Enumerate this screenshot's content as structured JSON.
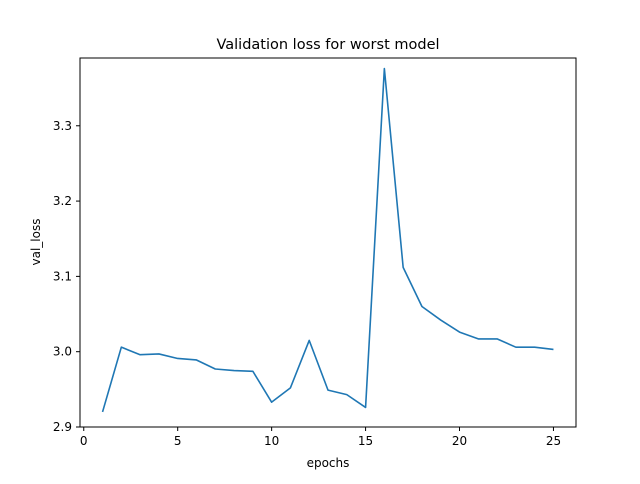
{
  "chart_data": {
    "type": "line",
    "title": "Validation loss for worst model",
    "xlabel": "epochs",
    "ylabel": "val_loss",
    "xlim": [
      -0.2,
      26.2
    ],
    "ylim": [
      2.9,
      3.39
    ],
    "xticks": [
      0,
      5,
      10,
      15,
      20,
      25
    ],
    "yticks": [
      2.9,
      3.0,
      3.1,
      3.2,
      3.3
    ],
    "ytick_labels": [
      "2.9",
      "3.0",
      "3.1",
      "3.2",
      "3.3"
    ],
    "xtick_labels": [
      "0",
      "5",
      "10",
      "15",
      "20",
      "25"
    ],
    "grid": false,
    "series": [
      {
        "color": "#1f77b4",
        "x": [
          1,
          2,
          3,
          4,
          5,
          6,
          7,
          8,
          9,
          10,
          11,
          12,
          13,
          14,
          15,
          16,
          17,
          18,
          19,
          20,
          21,
          22,
          23,
          24,
          25
        ],
        "y": [
          2.92,
          3.006,
          2.996,
          2.997,
          2.991,
          2.989,
          2.977,
          2.975,
          2.974,
          2.933,
          2.952,
          3.015,
          2.949,
          2.943,
          2.926,
          3.376,
          3.112,
          3.06,
          3.042,
          3.026,
          3.017,
          3.017,
          3.006,
          3.006,
          3.003
        ]
      }
    ]
  }
}
